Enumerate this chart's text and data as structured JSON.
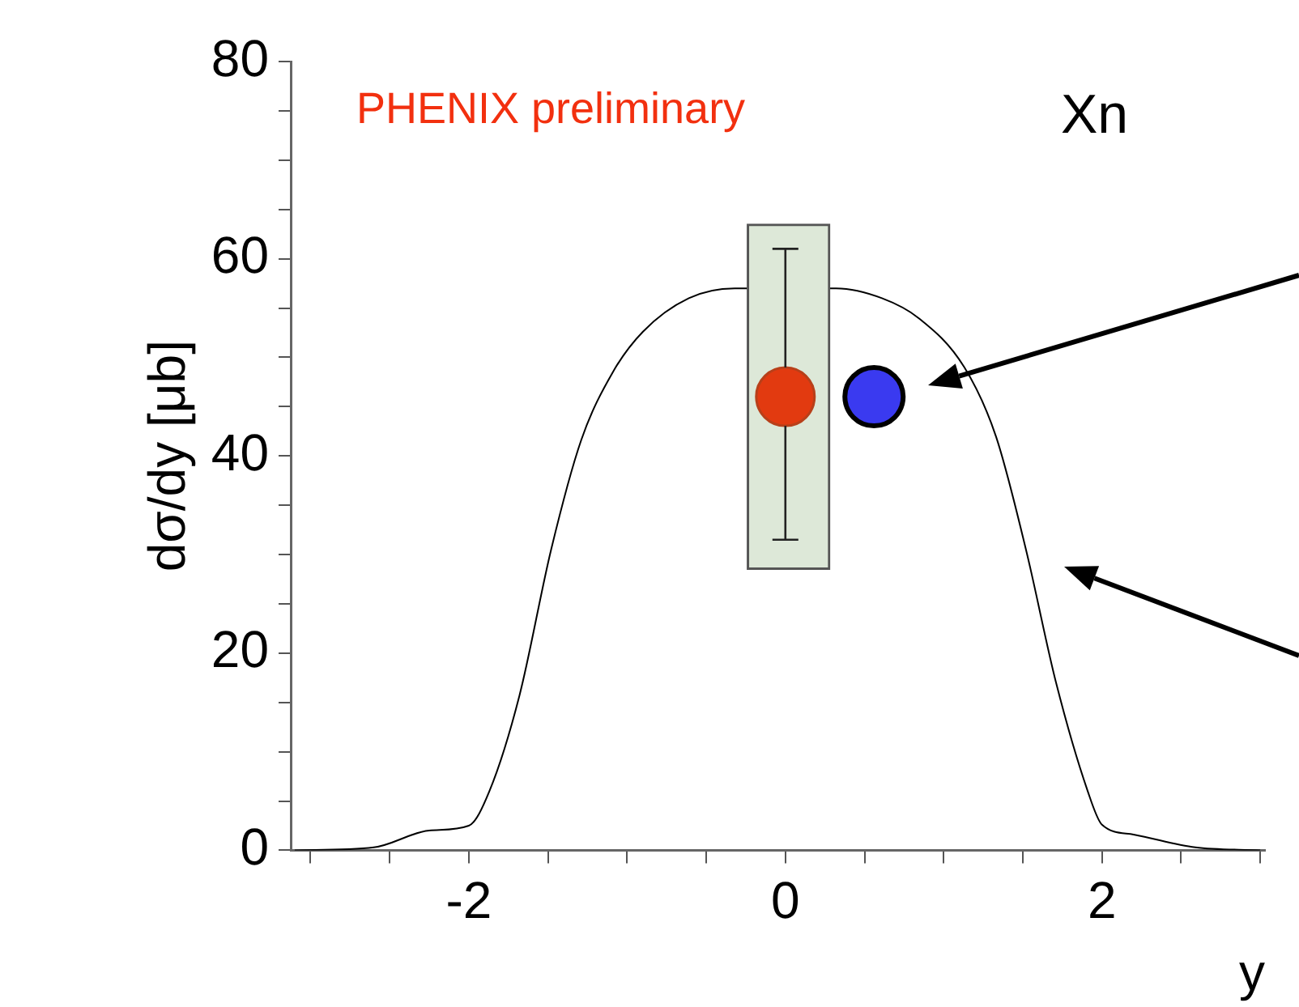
{
  "chart_data": {
    "type": "scatter",
    "ylabel": "dσ/dy [μb]",
    "xlabel": "y",
    "annotations": [
      "PHENIX preliminary",
      "Xn"
    ],
    "xlim": [
      -3.12,
      3.03
    ],
    "ylim": [
      0,
      80
    ],
    "xticks": [
      {
        "value": -3,
        "label": null
      },
      {
        "value": -2.5,
        "label": null
      },
      -2,
      {
        "value": -1.5,
        "label": null
      },
      {
        "value": -1,
        "label": null
      },
      {
        "value": -0.5,
        "label": null
      },
      0,
      {
        "value": 0.5,
        "label": null
      },
      {
        "value": 1,
        "label": null
      },
      {
        "value": 1.5,
        "label": null
      },
      2,
      {
        "value": 2.5,
        "label": null
      },
      {
        "value": 3,
        "label": null
      }
    ],
    "yticks": [
      0,
      {
        "value": 5,
        "label": null
      },
      {
        "value": 10,
        "label": null
      },
      {
        "value": 15,
        "label": null
      },
      20,
      {
        "value": 25,
        "label": null
      },
      {
        "value": 30,
        "label": null
      },
      {
        "value": 35,
        "label": null
      },
      40,
      {
        "value": 45,
        "label": null
      },
      {
        "value": 50,
        "label": null
      },
      {
        "value": 55,
        "label": null
      },
      60,
      {
        "value": 65,
        "label": null
      },
      {
        "value": 70,
        "label": null
      },
      {
        "value": 75,
        "label": null
      },
      80
    ],
    "grid": false,
    "legend": false,
    "series": [
      {
        "type": "bar",
        "color": "#dde8d8",
        "x": [
          0.02
        ],
        "base": [
          28.5
        ],
        "values": [
          35
        ]
      },
      {
        "type": "line",
        "color": "#000000",
        "marker": "none",
        "line_style": "solid",
        "x": [
          -3.1,
          -2.6,
          -2.25,
          -2.0,
          -1.87,
          -1.68,
          -1.48,
          -1.29,
          -1.09,
          -0.9,
          -0.61,
          -0.32,
          0,
          0.32,
          0.61,
          0.84,
          1.13,
          1.33,
          1.52,
          1.71,
          1.91,
          2.0,
          2.2,
          2.59,
          3.0
        ],
        "values": [
          0,
          0.3,
          2,
          2.5,
          6,
          15.7,
          30.5,
          41.6,
          48.5,
          52.6,
          56,
          57,
          null,
          57,
          56,
          54,
          49,
          42,
          30.5,
          17,
          6,
          2.6,
          1.6,
          0.3,
          0
        ]
      },
      {
        "color": "#e23a10",
        "marker": "circle",
        "x": [
          0
        ],
        "values": [
          46
        ],
        "errors": [
          [
            31.5,
            61
          ]
        ]
      },
      {
        "color": "#3a3af0",
        "marker": "circle",
        "x": [
          0.56
        ],
        "values": [
          46
        ]
      }
    ]
  }
}
